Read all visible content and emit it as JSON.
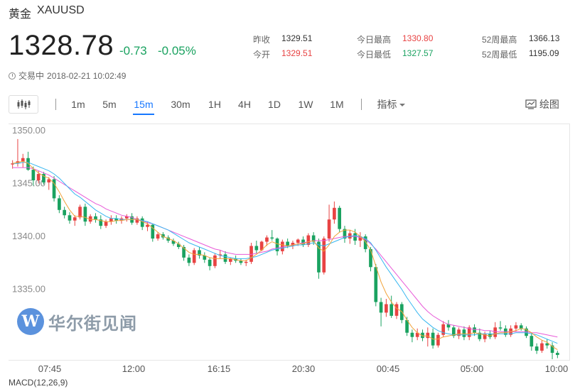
{
  "header": {
    "name": "黄金",
    "symbol": "XAUUSD"
  },
  "quote": {
    "price": "1328.78",
    "change": "-0.73",
    "change_pct": "-0.05%"
  },
  "stats": [
    {
      "label": "昨收",
      "value": "1329.51",
      "tone": "dark"
    },
    {
      "label": "今开",
      "value": "1329.51",
      "tone": "red"
    },
    {
      "label": "今日最高",
      "value": "1330.80",
      "tone": "red"
    },
    {
      "label": "今日最低",
      "value": "1327.57",
      "tone": "green"
    },
    {
      "label": "52周最高",
      "value": "1366.13",
      "tone": "dark"
    },
    {
      "label": "52周最低",
      "value": "1195.09",
      "tone": "dark"
    }
  ],
  "status": {
    "state": "交易中",
    "time": "2018-02-21 10:02:49"
  },
  "toolbar": {
    "intervals": [
      "1m",
      "5m",
      "15m",
      "30m",
      "1H",
      "4H",
      "1D",
      "1W",
      "1M"
    ],
    "active_interval": "15m",
    "indicator_label": "指标",
    "draw_label": "绘图"
  },
  "watermark": {
    "text": "华尔街见闻"
  },
  "chart_data": {
    "type": "candlestick",
    "y_ticks": [
      "1350.00",
      "1345.00",
      "1340.00",
      "1335.00"
    ],
    "ylim": [
      1328.2,
      1350.6
    ],
    "x_ticks": [
      "07:45",
      "12:00",
      "16:15",
      "20:30",
      "00:45",
      "05:00",
      "10:00"
    ],
    "colors": {
      "up": "#e84343",
      "down": "#1aa260",
      "ma_short": "#f2a33a",
      "ma_mid": "#38b7f0",
      "ma_long": "#e85ad8"
    },
    "ohlc": [
      [
        1346.8,
        1347.2,
        1346.4,
        1346.9
      ],
      [
        1346.9,
        1349.2,
        1346.6,
        1347.1
      ],
      [
        1347.1,
        1347.8,
        1346.5,
        1347.4
      ],
      [
        1347.4,
        1348.0,
        1346.2,
        1346.3
      ],
      [
        1346.3,
        1346.6,
        1344.8,
        1345.3
      ],
      [
        1345.3,
        1346.2,
        1345.0,
        1345.9
      ],
      [
        1345.9,
        1346.1,
        1344.9,
        1345.1
      ],
      [
        1345.1,
        1345.6,
        1344.4,
        1345.4
      ],
      [
        1345.4,
        1345.7,
        1343.3,
        1343.6
      ],
      [
        1343.6,
        1343.9,
        1342.2,
        1342.5
      ],
      [
        1342.5,
        1342.8,
        1341.7,
        1342.0
      ],
      [
        1342.0,
        1342.3,
        1341.2,
        1341.5
      ],
      [
        1341.5,
        1342.0,
        1341.0,
        1341.8
      ],
      [
        1341.8,
        1343.0,
        1341.6,
        1342.8
      ],
      [
        1342.8,
        1343.1,
        1341.0,
        1341.4
      ],
      [
        1341.4,
        1342.1,
        1341.2,
        1341.9
      ],
      [
        1341.9,
        1342.2,
        1341.3,
        1341.6
      ],
      [
        1341.6,
        1342.0,
        1340.7,
        1341.0
      ],
      [
        1341.0,
        1341.6,
        1340.8,
        1341.4
      ],
      [
        1341.4,
        1342.0,
        1341.1,
        1341.7
      ],
      [
        1341.7,
        1342.0,
        1341.2,
        1341.5
      ],
      [
        1341.5,
        1341.9,
        1341.2,
        1341.7
      ],
      [
        1341.7,
        1342.1,
        1341.4,
        1341.9
      ],
      [
        1341.9,
        1342.2,
        1341.1,
        1341.3
      ],
      [
        1341.3,
        1341.9,
        1341.1,
        1341.7
      ],
      [
        1341.7,
        1341.9,
        1340.6,
        1340.9
      ],
      [
        1340.9,
        1341.4,
        1340.5,
        1341.1
      ],
      [
        1341.1,
        1341.2,
        1339.5,
        1339.8
      ],
      [
        1339.8,
        1340.4,
        1339.6,
        1340.2
      ],
      [
        1340.2,
        1340.4,
        1339.7,
        1339.9
      ],
      [
        1339.9,
        1340.1,
        1339.4,
        1339.6
      ],
      [
        1339.6,
        1339.8,
        1339.1,
        1339.3
      ],
      [
        1339.3,
        1339.5,
        1338.8,
        1339.0
      ],
      [
        1339.0,
        1339.2,
        1337.7,
        1338.0
      ],
      [
        1338.0,
        1338.3,
        1337.2,
        1337.5
      ],
      [
        1337.5,
        1338.9,
        1337.3,
        1338.7
      ],
      [
        1338.7,
        1339.0,
        1337.9,
        1338.2
      ],
      [
        1338.2,
        1338.5,
        1337.5,
        1337.8
      ],
      [
        1337.8,
        1338.0,
        1336.8,
        1337.2
      ],
      [
        1337.2,
        1338.4,
        1337.0,
        1338.2
      ],
      [
        1338.2,
        1338.7,
        1337.9,
        1338.3
      ],
      [
        1338.3,
        1338.6,
        1337.4,
        1337.6
      ],
      [
        1337.6,
        1338.0,
        1337.3,
        1337.9
      ],
      [
        1337.9,
        1338.2,
        1337.5,
        1337.7
      ],
      [
        1337.7,
        1337.9,
        1337.3,
        1337.5
      ],
      [
        1337.5,
        1337.8,
        1337.2,
        1337.6
      ],
      [
        1337.6,
        1339.4,
        1337.4,
        1339.1
      ],
      [
        1339.1,
        1339.6,
        1338.4,
        1338.7
      ],
      [
        1338.7,
        1339.6,
        1338.6,
        1339.5
      ],
      [
        1339.5,
        1340.1,
        1339.1,
        1339.9
      ],
      [
        1339.9,
        1340.6,
        1339.6,
        1339.8
      ],
      [
        1339.8,
        1339.9,
        1338.2,
        1338.6
      ],
      [
        1338.6,
        1339.7,
        1338.3,
        1339.5
      ],
      [
        1339.5,
        1339.8,
        1338.9,
        1339.1
      ],
      [
        1339.1,
        1339.6,
        1338.8,
        1339.4
      ],
      [
        1339.4,
        1339.8,
        1339.1,
        1339.7
      ],
      [
        1339.7,
        1340.0,
        1339.0,
        1339.2
      ],
      [
        1339.2,
        1340.3,
        1339.0,
        1340.1
      ],
      [
        1340.1,
        1340.4,
        1339.2,
        1339.5
      ],
      [
        1339.5,
        1339.8,
        1336.0,
        1336.6
      ],
      [
        1336.6,
        1340.0,
        1336.4,
        1339.8
      ],
      [
        1339.8,
        1343.0,
        1339.5,
        1341.6
      ],
      [
        1341.6,
        1343.3,
        1341.2,
        1342.7
      ],
      [
        1342.7,
        1342.9,
        1340.4,
        1340.7
      ],
      [
        1340.7,
        1341.0,
        1339.4,
        1339.8
      ],
      [
        1339.8,
        1340.6,
        1339.3,
        1340.3
      ],
      [
        1340.3,
        1340.7,
        1339.2,
        1339.6
      ],
      [
        1339.6,
        1340.4,
        1339.0,
        1340.0
      ],
      [
        1340.0,
        1340.2,
        1338.5,
        1338.8
      ],
      [
        1338.8,
        1339.0,
        1336.7,
        1337.1
      ],
      [
        1337.1,
        1337.4,
        1333.4,
        1333.8
      ],
      [
        1333.8,
        1334.2,
        1331.5,
        1332.8
      ],
      [
        1332.8,
        1334.1,
        1332.4,
        1333.6
      ],
      [
        1333.6,
        1334.4,
        1332.3,
        1332.5
      ],
      [
        1332.5,
        1333.8,
        1332.2,
        1333.6
      ],
      [
        1333.6,
        1333.8,
        1331.8,
        1332.1
      ],
      [
        1332.1,
        1332.4,
        1330.6,
        1330.9
      ],
      [
        1330.9,
        1331.2,
        1330.0,
        1330.5
      ],
      [
        1330.5,
        1331.3,
        1330.2,
        1330.9
      ],
      [
        1330.9,
        1331.2,
        1330.1,
        1330.4
      ],
      [
        1330.4,
        1331.4,
        1329.6,
        1330.9
      ],
      [
        1330.9,
        1331.3,
        1329.4,
        1329.7
      ],
      [
        1329.7,
        1330.9,
        1329.5,
        1330.7
      ],
      [
        1330.7,
        1332.0,
        1330.5,
        1331.7
      ],
      [
        1331.7,
        1332.1,
        1331.1,
        1331.4
      ],
      [
        1331.4,
        1331.6,
        1330.4,
        1330.6
      ],
      [
        1330.6,
        1331.4,
        1330.3,
        1331.2
      ],
      [
        1331.2,
        1331.5,
        1330.2,
        1330.5
      ],
      [
        1330.5,
        1331.6,
        1330.2,
        1331.4
      ],
      [
        1331.4,
        1331.7,
        1330.6,
        1330.9
      ],
      [
        1330.9,
        1331.3,
        1330.1,
        1330.3
      ],
      [
        1330.3,
        1331.0,
        1330.0,
        1330.8
      ],
      [
        1330.8,
        1331.1,
        1330.3,
        1330.5
      ],
      [
        1330.5,
        1331.9,
        1330.3,
        1331.4
      ],
      [
        1331.4,
        1332.0,
        1331.1,
        1331.3
      ],
      [
        1331.3,
        1331.6,
        1330.5,
        1330.7
      ],
      [
        1330.7,
        1331.6,
        1330.5,
        1331.3
      ],
      [
        1331.3,
        1331.9,
        1331.0,
        1331.6
      ],
      [
        1331.6,
        1331.8,
        1331.1,
        1331.3
      ],
      [
        1331.3,
        1331.5,
        1330.4,
        1330.6
      ],
      [
        1330.6,
        1330.9,
        1329.2,
        1329.6
      ],
      [
        1329.6,
        1329.9,
        1328.9,
        1329.2
      ],
      [
        1329.2,
        1330.2,
        1329.0,
        1329.9
      ],
      [
        1329.9,
        1330.3,
        1329.4,
        1329.7
      ],
      [
        1329.7,
        1330.0,
        1328.4,
        1329.0
      ],
      [
        1329.0,
        1329.2,
        1328.5,
        1328.8
      ]
    ],
    "ma_short": [
      1346.9,
      1347.0,
      1347.1,
      1346.9,
      1346.4,
      1346.0,
      1345.7,
      1345.5,
      1345.0,
      1344.2,
      1343.3,
      1342.5,
      1341.9,
      1341.9,
      1341.8,
      1341.6,
      1341.6,
      1341.5,
      1341.4,
      1341.4,
      1341.5,
      1341.5,
      1341.6,
      1341.6,
      1341.6,
      1341.4,
      1341.2,
      1340.8,
      1340.4,
      1340.0,
      1339.8,
      1339.6,
      1339.3,
      1338.9,
      1338.5,
      1338.3,
      1338.3,
      1338.2,
      1338.0,
      1337.9,
      1337.9,
      1337.9,
      1337.9,
      1337.8,
      1337.7,
      1337.7,
      1338.0,
      1338.3,
      1338.7,
      1339.2,
      1339.5,
      1339.3,
      1339.2,
      1339.1,
      1339.2,
      1339.3,
      1339.3,
      1339.5,
      1339.6,
      1338.9,
      1338.6,
      1339.2,
      1340.0,
      1340.4,
      1340.6,
      1340.6,
      1340.4,
      1340.0,
      1339.5,
      1338.7,
      1337.2,
      1335.7,
      1334.6,
      1333.8,
      1333.2,
      1332.9,
      1332.1,
      1331.4,
      1330.9,
      1330.6,
      1330.6,
      1330.3,
      1330.3,
      1330.5,
      1330.6,
      1330.7,
      1330.8,
      1330.8,
      1330.8,
      1330.9,
      1330.8,
      1330.7,
      1330.6,
      1330.8,
      1330.9,
      1330.9,
      1331.0,
      1331.1,
      1331.3,
      1331.2,
      1330.9,
      1330.5,
      1330.2,
      1330.0,
      1329.6,
      1329.3
    ],
    "ma_mid": [
      1346.9,
      1346.9,
      1347.0,
      1347.0,
      1346.8,
      1346.6,
      1346.4,
      1346.2,
      1345.9,
      1345.5,
      1345.0,
      1344.5,
      1344.0,
      1343.7,
      1343.3,
      1342.9,
      1342.5,
      1342.2,
      1341.9,
      1341.7,
      1341.7,
      1341.6,
      1341.6,
      1341.6,
      1341.6,
      1341.5,
      1341.4,
      1341.2,
      1341.0,
      1340.8,
      1340.6,
      1340.3,
      1340.0,
      1339.7,
      1339.4,
      1339.2,
      1339.0,
      1338.8,
      1338.6,
      1338.4,
      1338.2,
      1338.1,
      1338.0,
      1337.9,
      1337.9,
      1337.9,
      1338.0,
      1338.1,
      1338.3,
      1338.5,
      1338.7,
      1338.8,
      1338.9,
      1339.0,
      1339.1,
      1339.2,
      1339.2,
      1339.3,
      1339.4,
      1339.2,
      1339.1,
      1339.3,
      1339.5,
      1339.7,
      1339.9,
      1340.0,
      1340.1,
      1340.0,
      1339.8,
      1339.4,
      1338.7,
      1337.9,
      1337.1,
      1336.4,
      1335.7,
      1335.0,
      1334.2,
      1333.5,
      1332.8,
      1332.2,
      1331.8,
      1331.4,
      1331.1,
      1330.9,
      1330.8,
      1330.7,
      1330.7,
      1330.7,
      1330.7,
      1330.7,
      1330.8,
      1330.8,
      1330.8,
      1330.8,
      1330.8,
      1330.8,
      1330.8,
      1330.9,
      1330.9,
      1330.9,
      1330.8,
      1330.7,
      1330.5,
      1330.3,
      1330.1,
      1329.9
    ],
    "ma_long": [
      1346.5,
      1346.5,
      1346.5,
      1346.5,
      1346.4,
      1346.2,
      1346.0,
      1345.8,
      1345.5,
      1345.2,
      1344.9,
      1344.6,
      1344.3,
      1344.0,
      1343.7,
      1343.4,
      1343.1,
      1342.9,
      1342.6,
      1342.4,
      1342.2,
      1342.0,
      1341.9,
      1341.8,
      1341.6,
      1341.5,
      1341.3,
      1341.2,
      1341.0,
      1340.8,
      1340.6,
      1340.4,
      1340.2,
      1340.0,
      1339.8,
      1339.6,
      1339.4,
      1339.2,
      1339.0,
      1338.8,
      1338.7,
      1338.5,
      1338.4,
      1338.3,
      1338.3,
      1338.3,
      1338.3,
      1338.4,
      1338.5,
      1338.6,
      1338.8,
      1338.9,
      1339.0,
      1339.1,
      1339.2,
      1339.3,
      1339.4,
      1339.5,
      1339.6,
      1339.6,
      1339.6,
      1339.7,
      1339.8,
      1339.9,
      1340.0,
      1340.0,
      1340.0,
      1339.9,
      1339.7,
      1339.3,
      1338.8,
      1338.2,
      1337.6,
      1337.0,
      1336.4,
      1335.8,
      1335.2,
      1334.6,
      1334.0,
      1333.4,
      1332.9,
      1332.5,
      1332.2,
      1331.9,
      1331.7,
      1331.6,
      1331.5,
      1331.4,
      1331.3,
      1331.2,
      1331.2,
      1331.1,
      1331.1,
      1331.0,
      1331.0,
      1331.0,
      1331.0,
      1331.0,
      1331.0,
      1331.0,
      1330.9,
      1330.9,
      1330.8,
      1330.7,
      1330.6,
      1330.5
    ]
  },
  "macd_label": "MACD(12,26,9)"
}
